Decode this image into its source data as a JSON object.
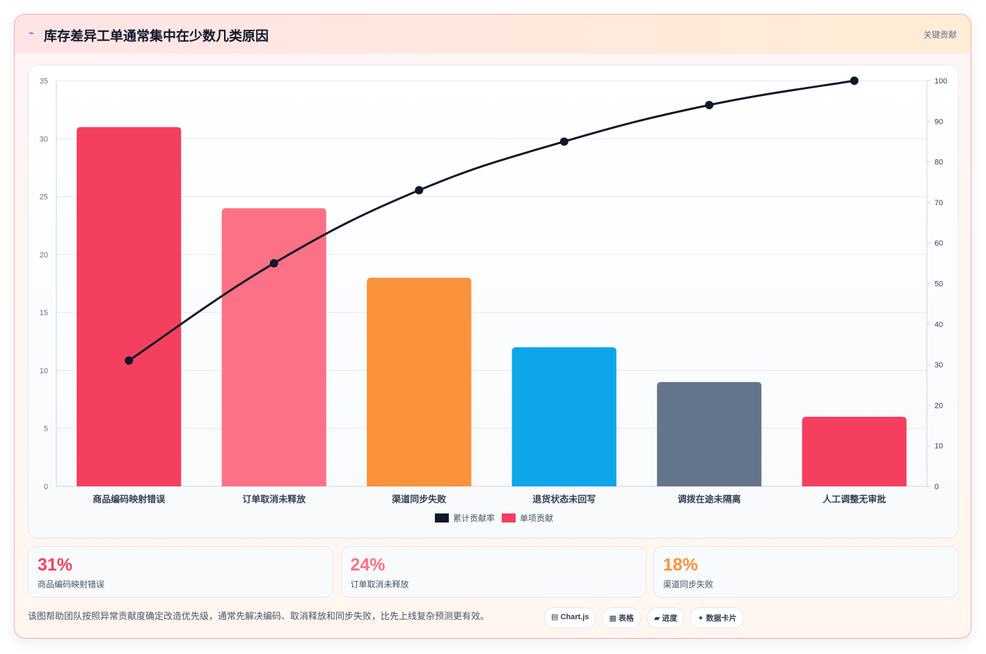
{
  "header": {
    "icon": "⌁",
    "title": "库存差异工单通常集中在少数几类原因",
    "badge": "关键贡献"
  },
  "chart_data": {
    "type": "pareto",
    "categories": [
      "商品编码映射错误",
      "订单取消未释放",
      "渠道同步失败",
      "退货状态未回写",
      "调拨在途未隔离",
      "人工调整无审批"
    ],
    "series": [
      {
        "name": "累计贡献率",
        "type": "line",
        "axis": "y2",
        "color": "#0f172a",
        "values": [
          31,
          55,
          73,
          85,
          94,
          100
        ]
      },
      {
        "name": "单项贡献",
        "type": "bar",
        "color": "#f43f5e",
        "colors": [
          "#f43f5e",
          "#fb7185",
          "#fb923c",
          "#0ea5e9",
          "#64748b",
          "#f43f5e"
        ],
        "values": [
          31,
          24,
          18,
          12,
          9,
          6
        ]
      }
    ],
    "ylim": [
      0,
      35
    ],
    "yticks": [
      0,
      5,
      10,
      15,
      20,
      25,
      30,
      35
    ],
    "y2lim": [
      0,
      100
    ],
    "y2ticks": [
      0,
      10,
      20,
      30,
      40,
      50,
      60,
      70,
      80,
      90,
      100
    ],
    "grid": true,
    "legend": "bottom"
  },
  "cards": [
    {
      "value": "31%",
      "label": "商品编码映射错误",
      "color": "#f43f5e"
    },
    {
      "value": "24%",
      "label": "订单取消未释放",
      "color": "#fb7185"
    },
    {
      "value": "18%",
      "label": "渠道同步失败",
      "color": "#fb923c"
    }
  ],
  "footer": {
    "note": "该图帮助团队按照异常贡献度确定改造优先级，通常先解决编码、取消释放和同步失败，比先上线复杂预测更有效。",
    "buttons": [
      "▤ Chart.js",
      "▦ 表格",
      "▰ 进度",
      "✦ 数据卡片"
    ]
  }
}
